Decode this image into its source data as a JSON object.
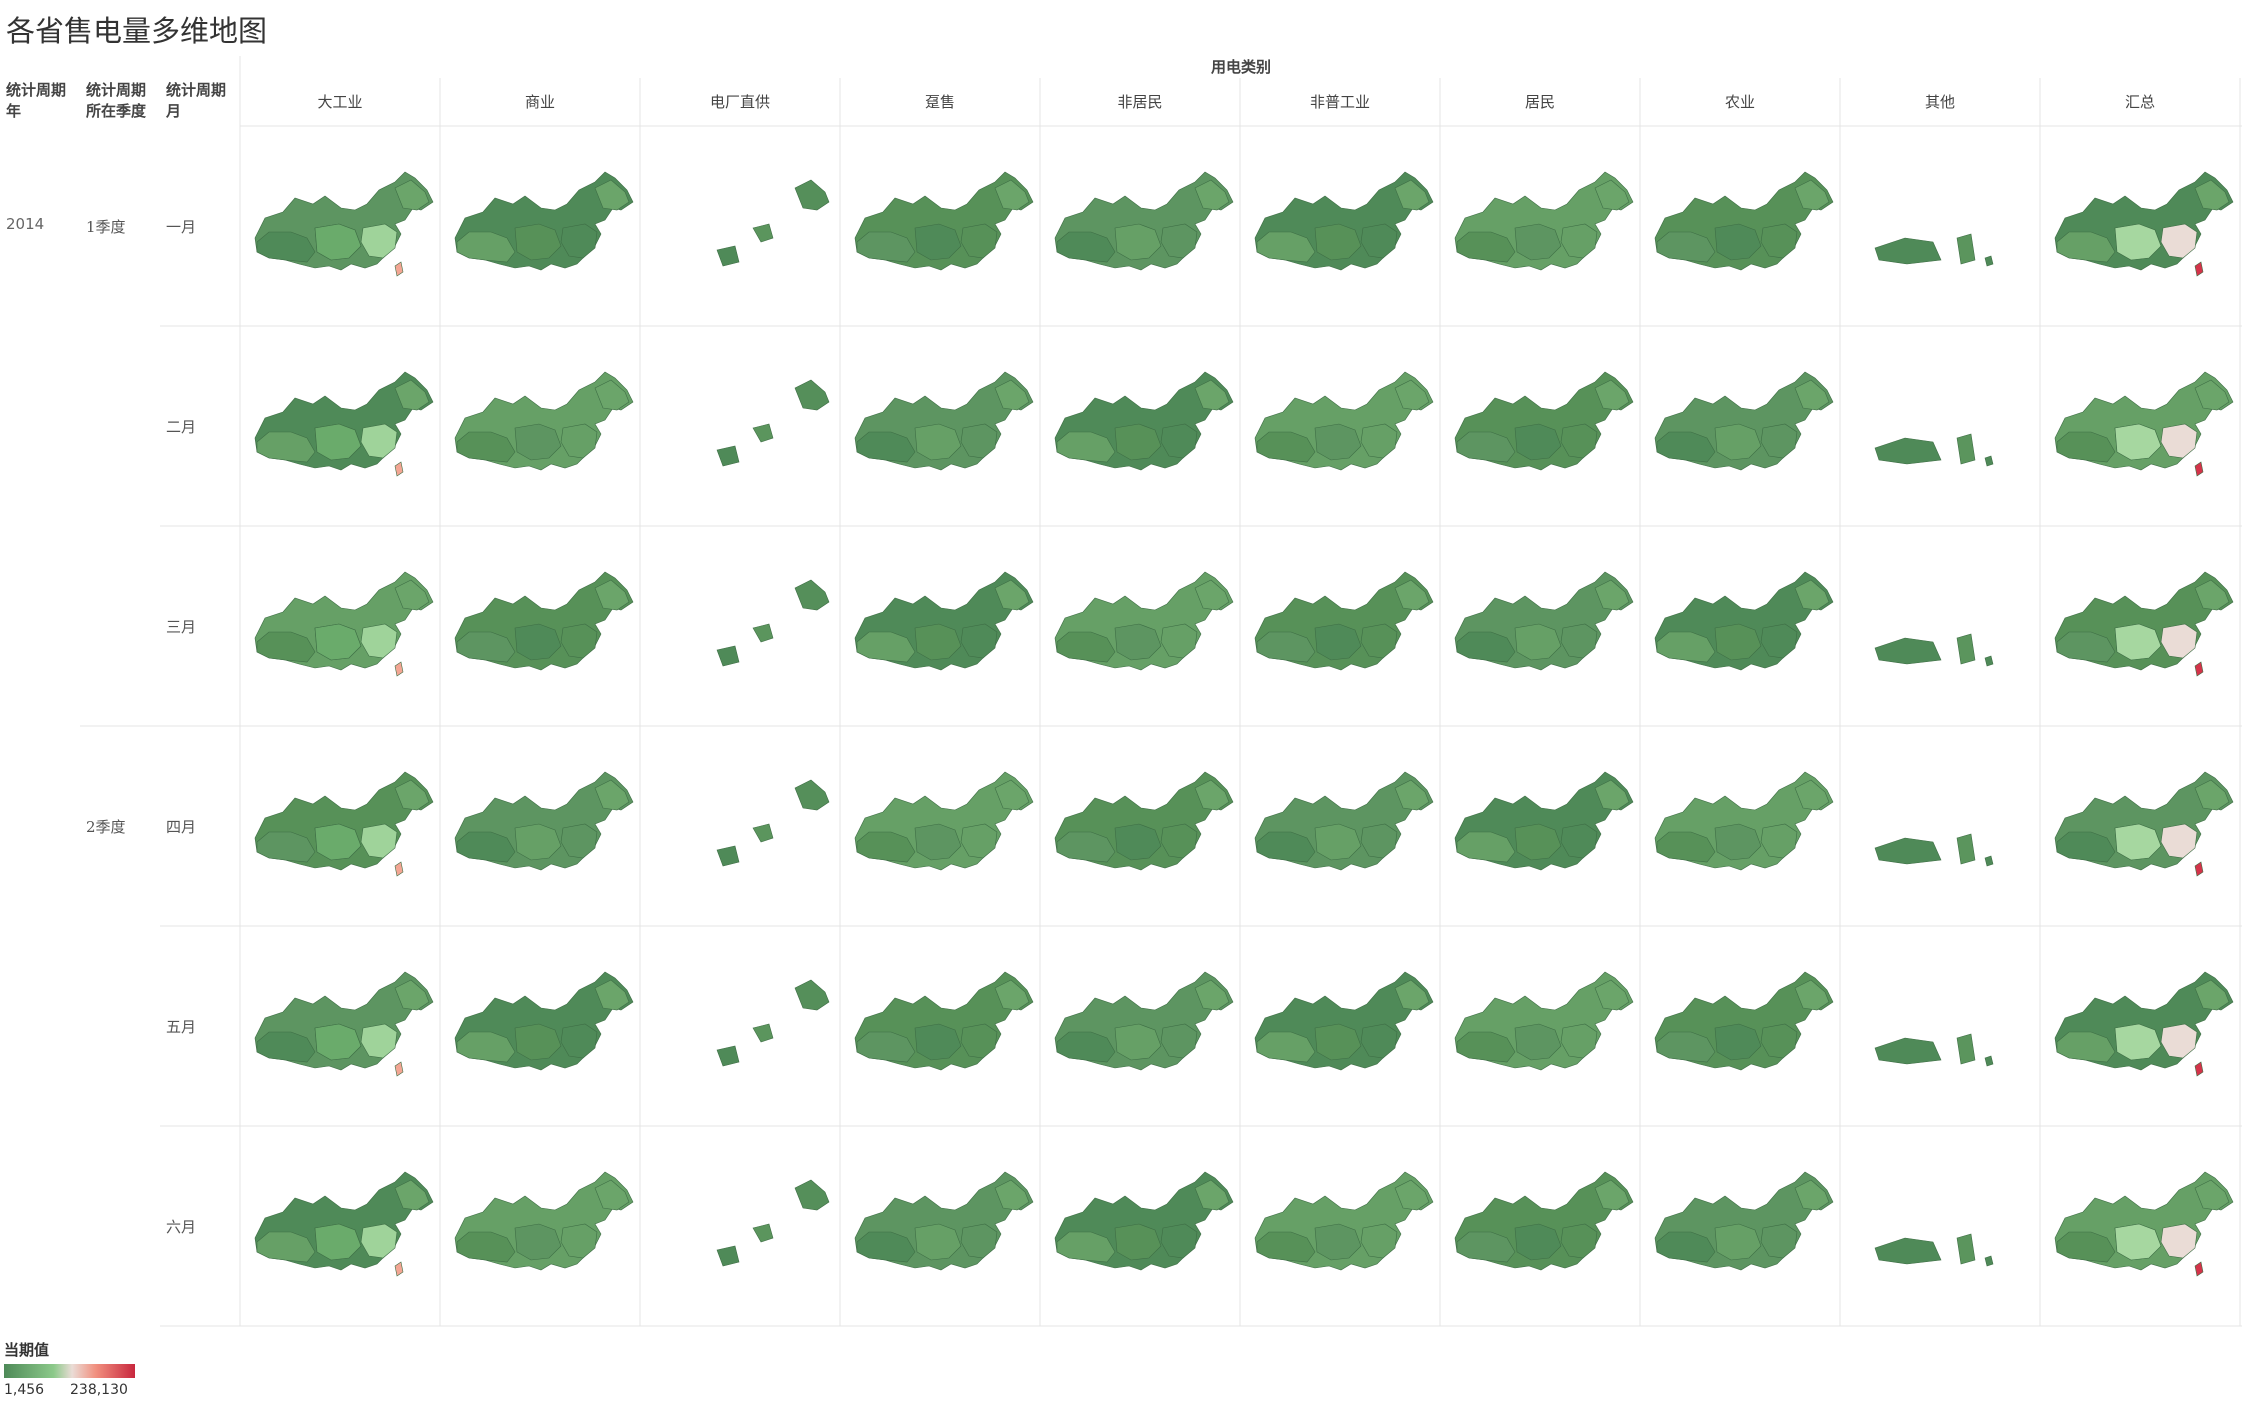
{
  "title": "各省售电量多维地图",
  "column_group_label": "用电类别",
  "row_header_labels": [
    "统计周期\n年",
    "统计周期\n所在季度",
    "统计周期\n月"
  ],
  "legend": {
    "title": "当期值",
    "min_label": "1,456",
    "max_label": "238,130"
  },
  "chart_data": {
    "type": "choropleth_small_multiples",
    "measure": "当期值",
    "color_range": [
      1456,
      238130
    ],
    "color_scale": [
      "#4e8a58",
      "#8cc98a",
      "#eadcd6",
      "#f1907f",
      "#c8273e"
    ],
    "years": [
      "2014"
    ],
    "quarters": [
      {
        "label": "1季度",
        "months": [
          "一月",
          "二月",
          "三月"
        ]
      },
      {
        "label": "2季度",
        "months": [
          "四月",
          "五月",
          "六月"
        ]
      }
    ],
    "months": [
      "一月",
      "二月",
      "三月",
      "四月",
      "五月",
      "六月"
    ],
    "categories": [
      "大工业",
      "商业",
      "电厂直供",
      "趸售",
      "非居民",
      "非普工业",
      "居民",
      "农业",
      "其他",
      "汇总"
    ],
    "coverage": {
      "电厂直供": "partial",
      "其他": "partial"
    },
    "highlight_levels": {
      "大工业": [
        "#6aab6b",
        "#9fd39a",
        "#f3a694"
      ],
      "汇总": [
        "#a6d7a0",
        "#eadcd6",
        "#f0887a",
        "#d4334a"
      ]
    }
  }
}
